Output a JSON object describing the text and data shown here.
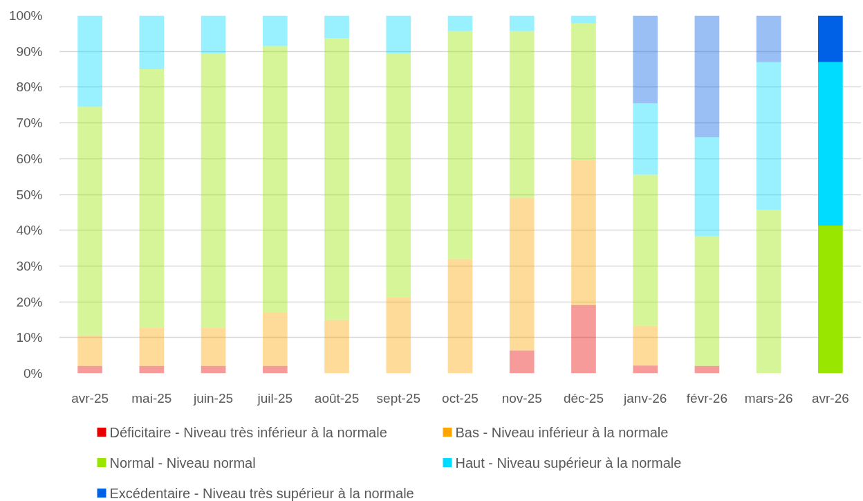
{
  "chart_data": {
    "type": "bar",
    "stacked": true,
    "categories": [
      "avr-25",
      "mai-25",
      "juin-25",
      "juil-25",
      "août-25",
      "sept-25",
      "oct-25",
      "nov-25",
      "déc-25",
      "janv-26",
      "févr-26",
      "mars-26",
      "avr-26"
    ],
    "ylim": [
      0,
      100
    ],
    "yticks": [
      {
        "value": 0,
        "label": "0%"
      },
      {
        "value": 10,
        "label": "10%"
      },
      {
        "value": 20,
        "label": "20%"
      },
      {
        "value": 30,
        "label": "30%"
      },
      {
        "value": 40,
        "label": "40%"
      },
      {
        "value": 50,
        "label": "50%"
      },
      {
        "value": 60,
        "label": "60%"
      },
      {
        "value": 70,
        "label": "70%"
      },
      {
        "value": 80,
        "label": "80%"
      },
      {
        "value": 90,
        "label": "90%"
      },
      {
        "value": 100,
        "label": "100%"
      }
    ],
    "grid": "y",
    "legend": "bottom",
    "series": [
      {
        "name": "Déficitaire - Niveau très inférieur à la normale",
        "color": "#e80000",
        "colors": [
          "#f69999",
          "#f69999",
          "#f69999",
          "#f69999",
          "#f69999",
          "#f69999",
          "#f69999",
          "#f69999",
          "#f69999",
          "#f69999",
          "#f69999",
          "#f69999",
          "#e80000"
        ],
        "values": [
          2.1,
          2.1,
          2.1,
          2.1,
          0,
          0,
          0,
          6.4,
          19.1,
          2.2,
          2.1,
          0,
          0
        ]
      },
      {
        "name": "Bas - Niveau inférieur à la normale",
        "color": "#ffa500",
        "colors": [
          "#ffdb99",
          "#ffdb99",
          "#ffdb99",
          "#ffdb99",
          "#ffdb99",
          "#ffdb99",
          "#ffdb99",
          "#ffdb99",
          "#ffdb99",
          "#ffdb99",
          "#ffdb99",
          "#ffdb99",
          "#ffa500"
        ],
        "values": [
          8.5,
          10.6,
          10.6,
          14.9,
          14.9,
          21.3,
          31.9,
          42.6,
          40.4,
          11.1,
          0,
          0,
          0
        ]
      },
      {
        "name": "Normal - Niveau normal",
        "color": "#99e600",
        "colors": [
          "#d6f599",
          "#d6f599",
          "#d6f599",
          "#d6f599",
          "#d6f599",
          "#d6f599",
          "#d6f599",
          "#d6f599",
          "#d6f599",
          "#d6f599",
          "#d6f599",
          "#d6f599",
          "#99e600"
        ],
        "values": [
          63.9,
          72.3,
          76.7,
          74.5,
          78.7,
          68.1,
          63.8,
          46.7,
          38.3,
          42.2,
          36.2,
          45.7,
          41.3
        ]
      },
      {
        "name": "Haut - Niveau supérieur à la normale",
        "color": "#00dcff",
        "colors": [
          "#99f1ff",
          "#99f1ff",
          "#99f1ff",
          "#99f1ff",
          "#99f1ff",
          "#99f1ff",
          "#99f1ff",
          "#99f1ff",
          "#99f1ff",
          "#99f1ff",
          "#99f1ff",
          "#99f1ff",
          "#00dcff"
        ],
        "values": [
          25.5,
          15.0,
          10.6,
          8.5,
          6.4,
          10.6,
          4.3,
          4.3,
          2.2,
          20.0,
          27.7,
          41.3,
          45.7
        ]
      },
      {
        "name": "Excédentaire - Niveau très supérieur à la normale",
        "color": "#0060e6",
        "colors": [
          "#99bff5",
          "#99bff5",
          "#99bff5",
          "#99bff5",
          "#99bff5",
          "#99bff5",
          "#99bff5",
          "#99bff5",
          "#99bff5",
          "#99bff5",
          "#99bff5",
          "#99bff5",
          "#0060e6"
        ],
        "values": [
          0,
          0,
          0,
          0,
          0,
          0,
          0,
          0,
          0,
          24.5,
          34.0,
          13.0,
          13.0
        ]
      }
    ]
  }
}
